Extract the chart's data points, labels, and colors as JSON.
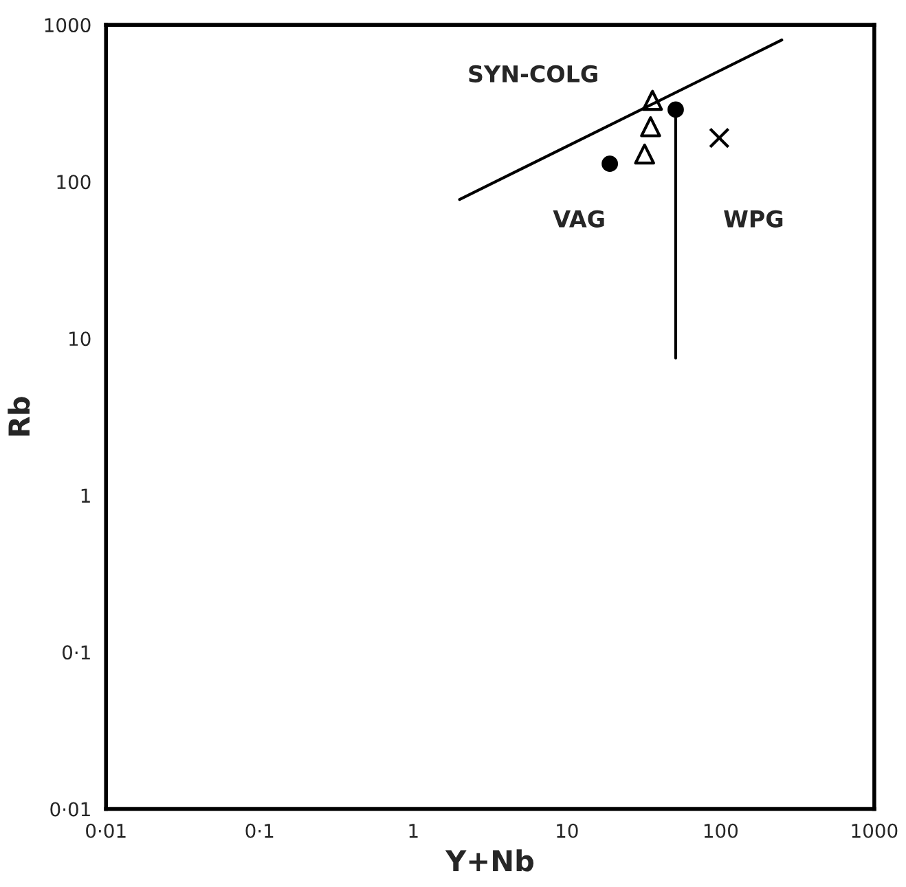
{
  "chart_data": {
    "type": "scatter",
    "xlabel": "Y+Nb",
    "ylabel": "Rb",
    "log": "xy",
    "xlim": [
      0.01,
      1000
    ],
    "ylim": [
      0.01,
      1000
    ],
    "xticks": [
      {
        "value": 0.01,
        "label": "0·01"
      },
      {
        "value": 0.1,
        "label": "0·1"
      },
      1,
      10,
      100,
      1000
    ],
    "yticks": [
      {
        "value": 0.01,
        "label": "0·01"
      },
      {
        "value": 0.1,
        "label": "0·1"
      },
      1,
      10,
      100,
      1000
    ],
    "grid": false,
    "legend": false,
    "series": [
      {
        "type": "line",
        "color": "#000000",
        "marker": "none",
        "line_style": "solid",
        "x": [
          2,
          250
        ],
        "values": [
          77,
          800
        ]
      },
      {
        "type": "line",
        "color": "#000000",
        "marker": "none",
        "line_style": "solid",
        "x": [
          51,
          51
        ],
        "values": [
          7.5,
          290
        ]
      },
      {
        "color": "#000000",
        "marker": "circle",
        "x": [
          19,
          51
        ],
        "values": [
          130,
          288
        ]
      },
      {
        "color": "#000000",
        "marker": "triangle",
        "x": [
          36,
          35,
          32
        ],
        "values": [
          330,
          224,
          150
        ]
      },
      {
        "color": "#000000",
        "marker": "cross",
        "x": [
          98
        ],
        "values": [
          190
        ]
      }
    ],
    "annotations": [
      "SYN-COLG",
      "VAG",
      "WPG"
    ]
  }
}
